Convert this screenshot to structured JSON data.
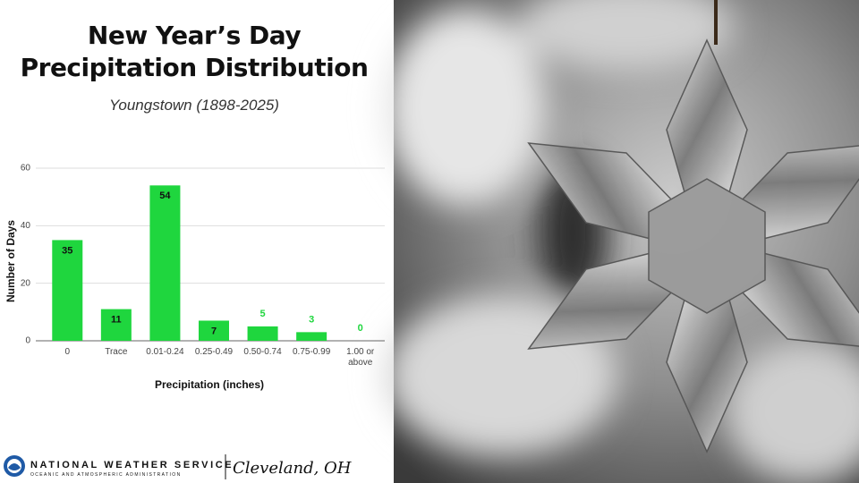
{
  "chart_data": {
    "type": "bar",
    "title": "New Year’s Day Precipitation Distribution",
    "subtitle": "Youngstown (1898-2025)",
    "x_label": "Precipitation (inches)",
    "y_label": "Number of Days",
    "categories": [
      "0",
      "Trace",
      "0.01-0.24",
      "0.25-0.49",
      "0.50-0.74",
      "0.75-0.99",
      "1.00 or above"
    ],
    "values": [
      35,
      11,
      54,
      7,
      5,
      3,
      0
    ],
    "color": "#1fd63e",
    "ylim": [
      0,
      60
    ],
    "yticks": [
      0,
      20,
      40,
      60
    ],
    "grid": true
  },
  "footer": {
    "agency": "NATIONAL WEATHER SERVICE",
    "agency_sub": "OCEANIC AND ATMOSPHERIC ADMINISTRATION",
    "office": "Cleveland, OH"
  }
}
